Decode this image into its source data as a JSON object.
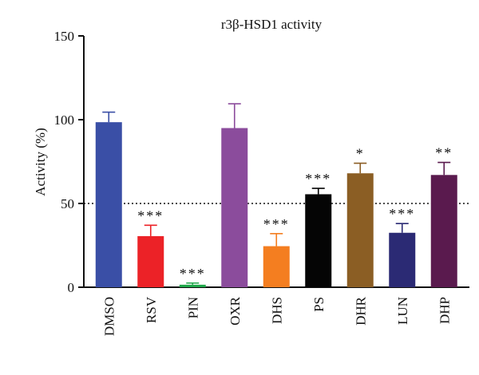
{
  "chart_data": {
    "type": "bar",
    "title": "r3β-HSD1 activity",
    "xlabel": "",
    "ylabel": "Activity (%)",
    "ylim": [
      0,
      150
    ],
    "yticks": [
      0,
      50,
      100,
      150
    ],
    "categories": [
      "DMSO",
      "RSV",
      "PIN",
      "OXR",
      "DHS",
      "PS",
      "DHR",
      "LUN",
      "DHP"
    ],
    "values": [
      98.5,
      30.5,
      1.5,
      95,
      24.5,
      55.5,
      68,
      32.5,
      67
    ],
    "errors": [
      6,
      6.5,
      1,
      14.5,
      7.5,
      3.5,
      6,
      5.5,
      7.5
    ],
    "significance": [
      "",
      "***",
      "***",
      "",
      "***",
      "***",
      "*",
      "***",
      "**"
    ],
    "reference_line": 50,
    "colors": [
      "#3a4fa6",
      "#ec2227",
      "#1fa84a",
      "#8b4c9c",
      "#f47e20",
      "#050505",
      "#8b5e24",
      "#2b2a74",
      "#5a1a4e"
    ],
    "grid": false
  }
}
